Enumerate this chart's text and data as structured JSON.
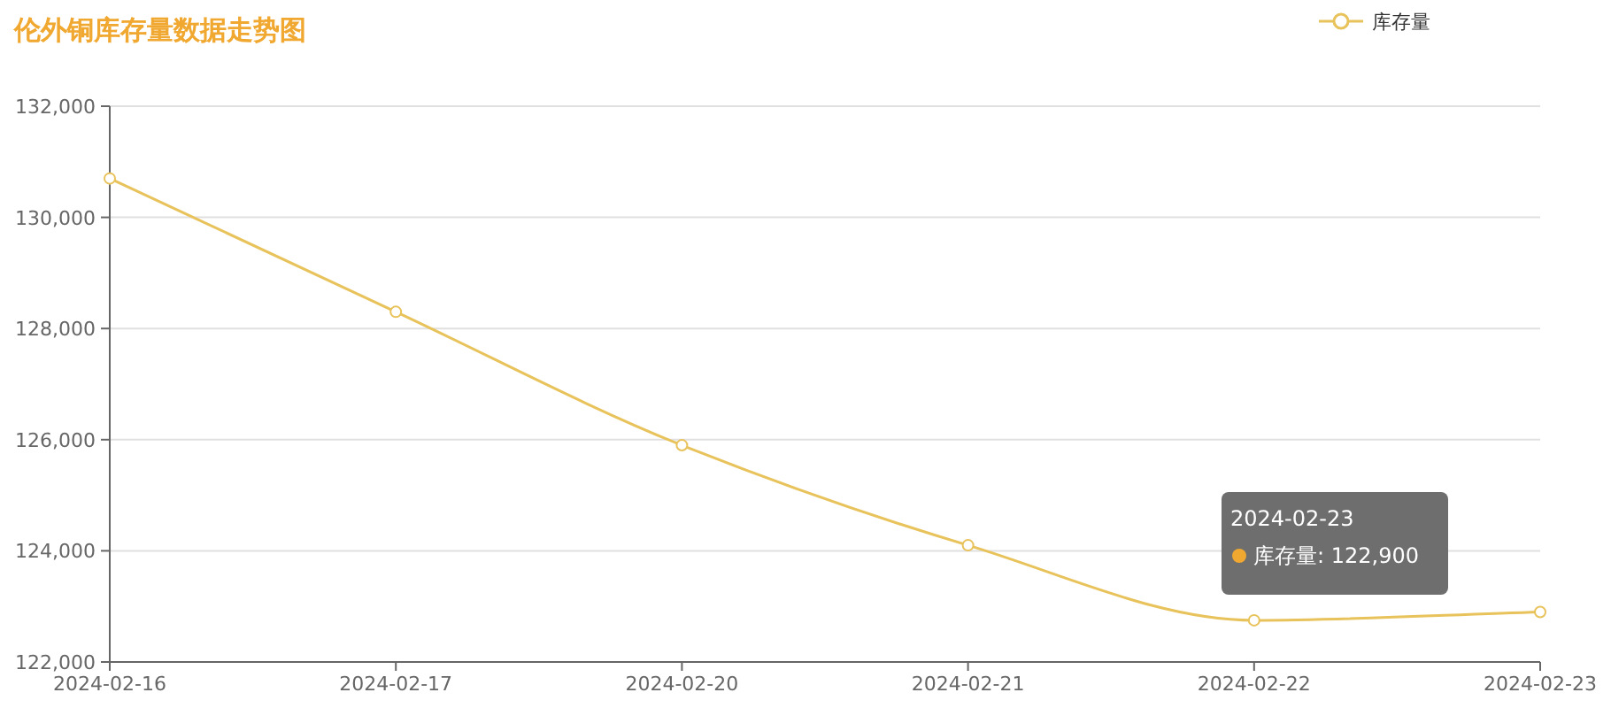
{
  "chart_data": {
    "type": "line",
    "title": "伦外铜库存量数据走势图",
    "categories": [
      "2024-02-16",
      "2024-02-17",
      "2024-02-20",
      "2024-02-21",
      "2024-02-22",
      "2024-02-23"
    ],
    "series": [
      {
        "name": "库存量",
        "color": "#e8c25a",
        "values": [
          130700,
          128300,
          125900,
          124100,
          122750,
          122900
        ]
      }
    ],
    "ylim": [
      122000,
      132000
    ],
    "yticks": [
      {
        "value": 122000,
        "label": "122,000"
      },
      {
        "value": 124000,
        "label": "124,000"
      },
      {
        "value": 126000,
        "label": "126,000"
      },
      {
        "value": 128000,
        "label": "128,000"
      },
      {
        "value": 130000,
        "label": "130,000"
      },
      {
        "value": 132000,
        "label": "132,000"
      }
    ],
    "grid": "y",
    "legend": "top right",
    "marker": "circle",
    "line_style": "solid",
    "annotations": [
      "2024-02-23",
      "库存量: 122,900"
    ]
  }
}
